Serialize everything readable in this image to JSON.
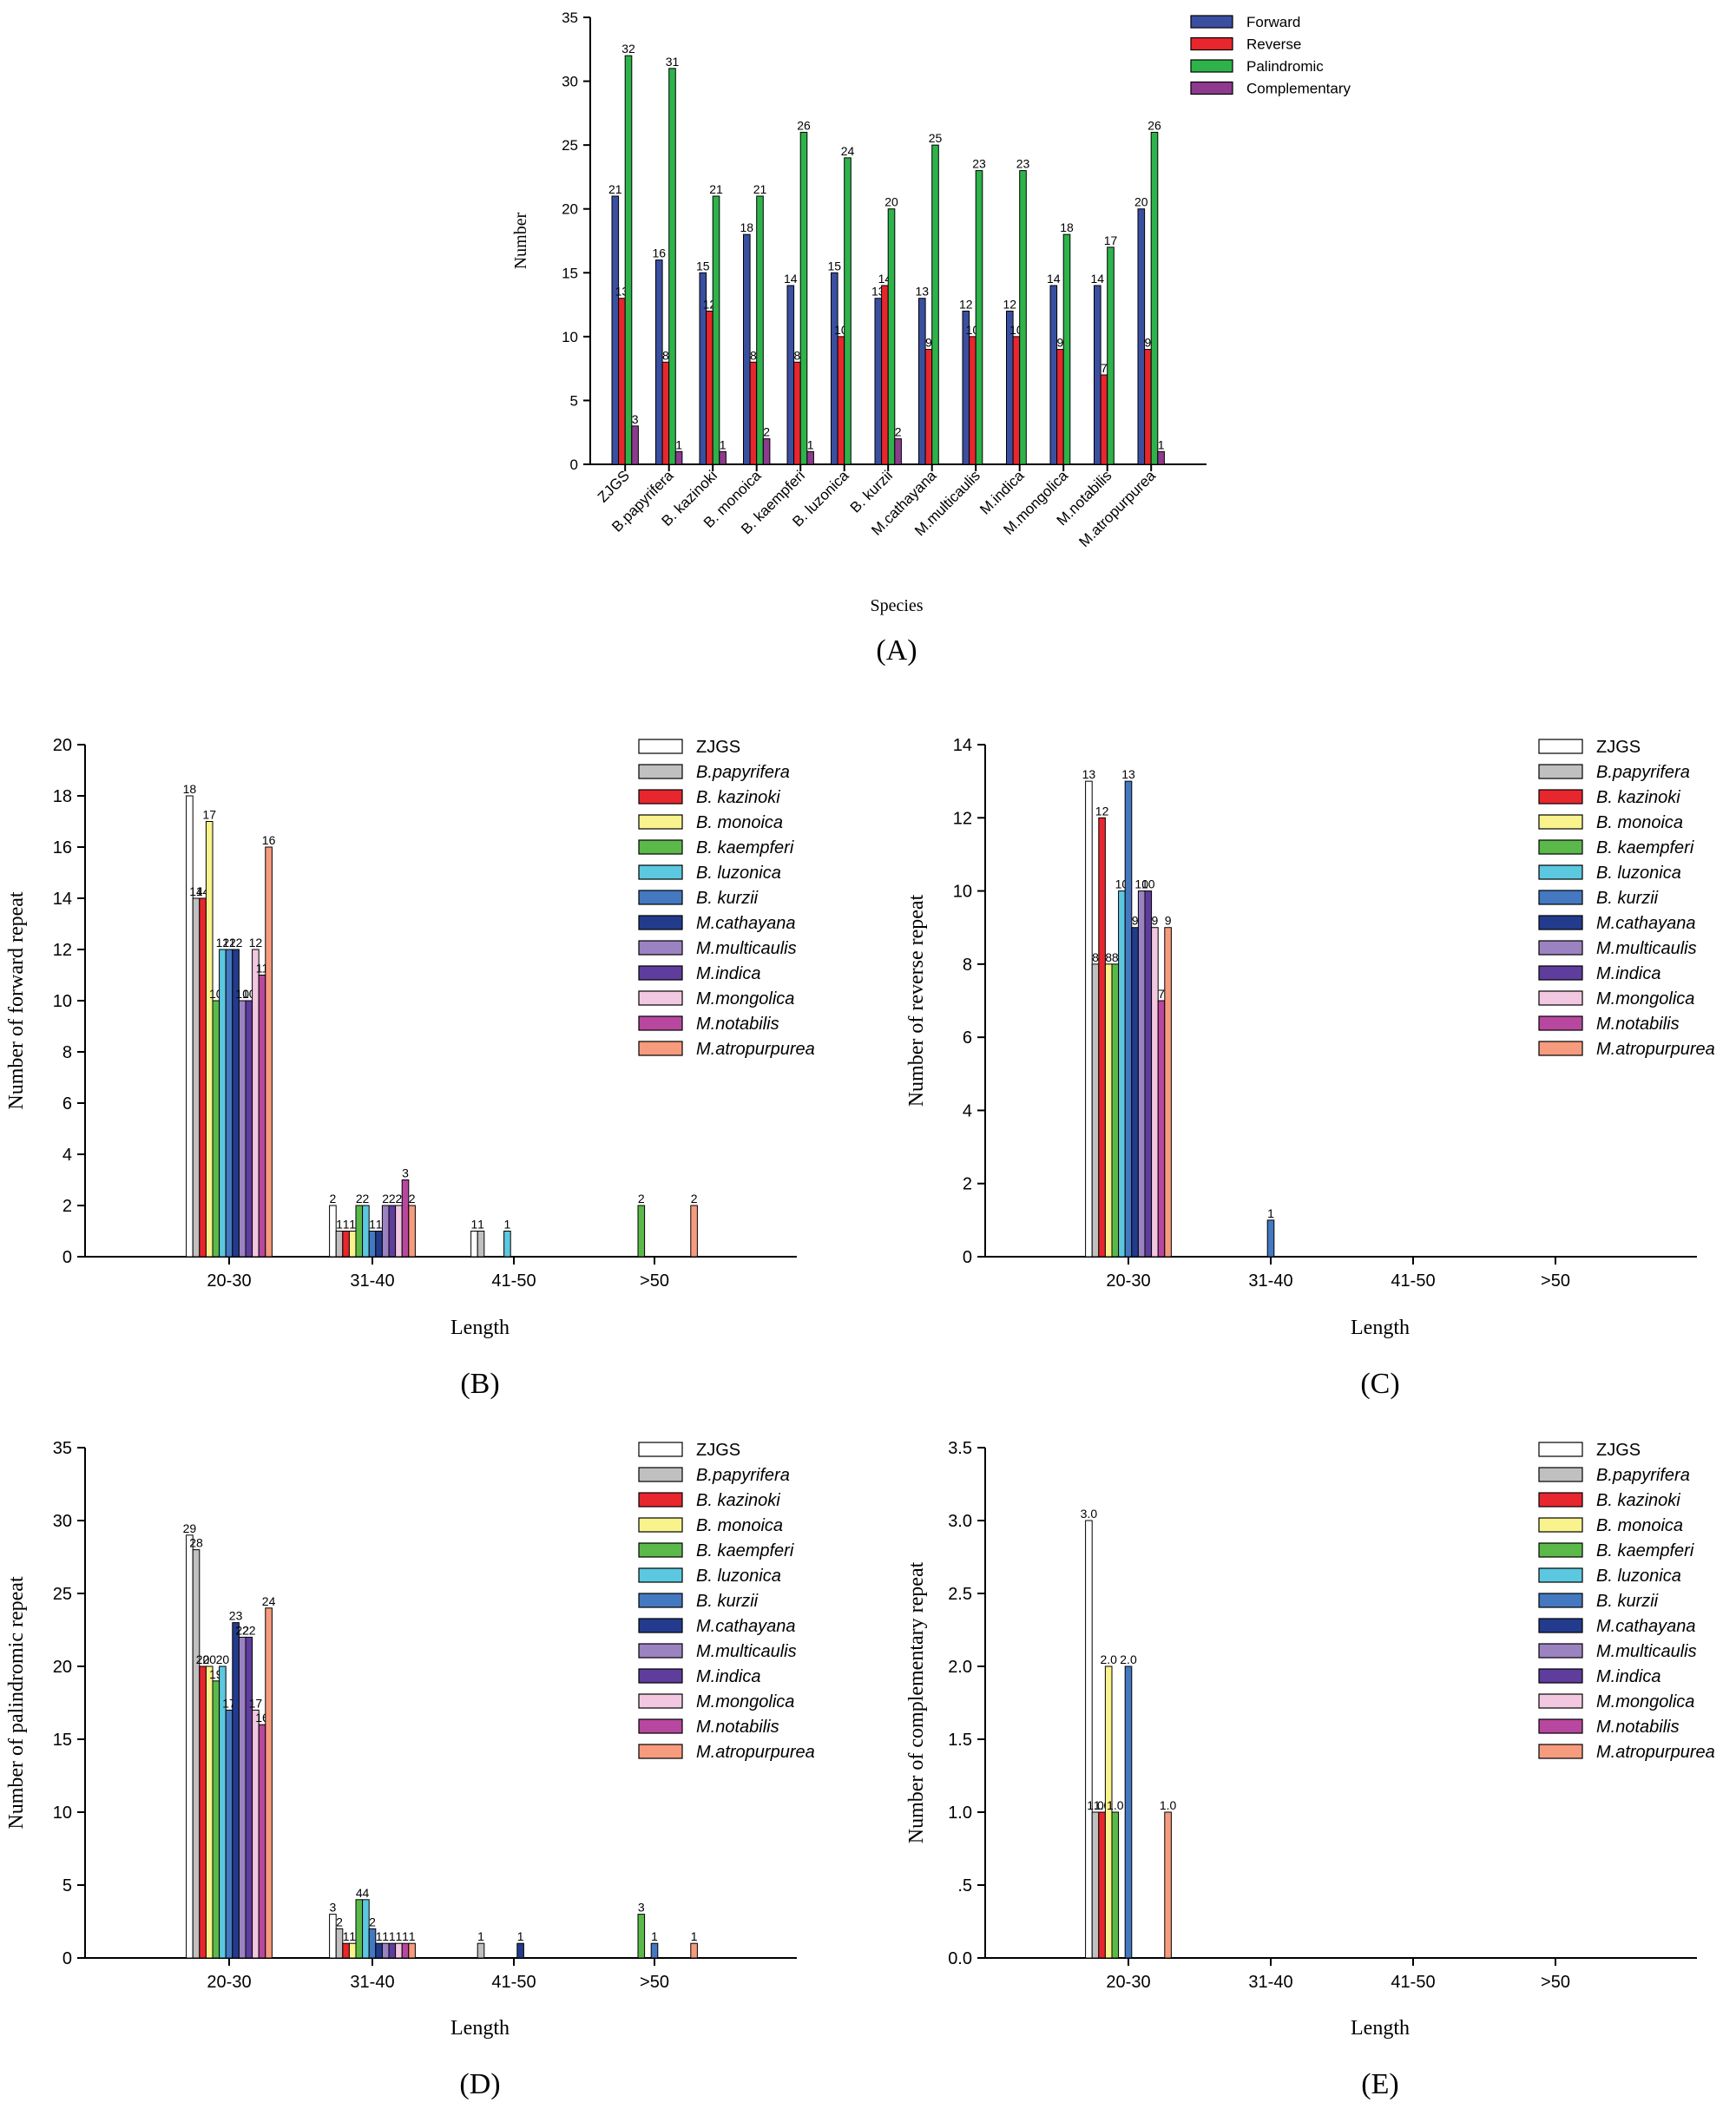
{
  "chart_data": [
    {
      "id": "A",
      "type": "bar",
      "panel_label": "(A)",
      "xlabel": "Species",
      "ylabel": "Number",
      "ylim": [
        0,
        35
      ],
      "yticks": [
        "0",
        "5",
        "10",
        "15",
        "20",
        "25",
        "30",
        "35"
      ],
      "categories": [
        "ZJGS",
        "B.papyrifera",
        "B. kazinoki",
        "B. monoica",
        "B. kaempferi",
        "B. luzonica",
        "B. kurzii",
        "M.cathayana",
        "M.multicaulis",
        "M.indica",
        "M.mongolica",
        "M.notabilis",
        "M.atropurpurea"
      ],
      "series": [
        {
          "name": "Forward",
          "color": "#3a4fa0",
          "values": [
            21,
            16,
            15,
            18,
            14,
            15,
            13,
            13,
            12,
            12,
            14,
            14,
            20
          ]
        },
        {
          "name": "Reverse",
          "color": "#e8262d",
          "values": [
            13,
            8,
            12,
            8,
            8,
            10,
            14,
            9,
            10,
            10,
            9,
            7,
            9
          ]
        },
        {
          "name": "Palindromic",
          "color": "#2db34a",
          "values": [
            32,
            31,
            21,
            21,
            26,
            24,
            20,
            25,
            23,
            23,
            18,
            17,
            26
          ]
        },
        {
          "name": "Complementary",
          "color": "#8e3a8e",
          "values": [
            3,
            1,
            1,
            2,
            1,
            0,
            2,
            0,
            0,
            0,
            0,
            0,
            1
          ]
        }
      ]
    },
    {
      "id": "B",
      "type": "bar",
      "panel_label": "(B)",
      "xlabel": "Length",
      "ylabel": "Number of forward repeat",
      "ylim": [
        0,
        20
      ],
      "yticks": [
        "0",
        "2",
        "4",
        "6",
        "8",
        "10",
        "12",
        "14",
        "16",
        "18",
        "20"
      ],
      "categories": [
        "20-30",
        "31-40",
        "41-50",
        ">50"
      ],
      "series": [
        {
          "name": "ZJGS",
          "values": [
            18,
            2,
            1,
            0
          ]
        },
        {
          "name": "B.papyrifera",
          "values": [
            14,
            1,
            1,
            0
          ]
        },
        {
          "name": "B. kazinoki",
          "values": [
            14,
            1,
            0,
            0
          ]
        },
        {
          "name": "B. monoica",
          "values": [
            17,
            1,
            0,
            0
          ]
        },
        {
          "name": "B. kaempferi",
          "values": [
            10,
            2,
            0,
            2
          ]
        },
        {
          "name": "B. luzonica",
          "values": [
            12,
            2,
            1,
            0
          ]
        },
        {
          "name": "B. kurzii",
          "values": [
            12,
            1,
            0,
            0
          ]
        },
        {
          "name": "M.cathayana",
          "values": [
            12,
            1,
            0,
            0
          ]
        },
        {
          "name": "M.multicaulis",
          "values": [
            10,
            2,
            0,
            0
          ]
        },
        {
          "name": "M.indica",
          "values": [
            10,
            2,
            0,
            0
          ]
        },
        {
          "name": "M.mongolica",
          "values": [
            12,
            2,
            0,
            0
          ]
        },
        {
          "name": "M.notabilis",
          "values": [
            11,
            3,
            0,
            0
          ]
        },
        {
          "name": "M.atropurpurea",
          "values": [
            16,
            2,
            0,
            2
          ]
        }
      ]
    },
    {
      "id": "C",
      "type": "bar",
      "panel_label": "(C)",
      "xlabel": "Length",
      "ylabel": "Number of reverse repeat",
      "ylim": [
        0,
        14
      ],
      "yticks": [
        "0",
        "2",
        "4",
        "6",
        "8",
        "10",
        "12",
        "14"
      ],
      "categories": [
        "20-30",
        "31-40",
        "41-50",
        ">50"
      ],
      "series": [
        {
          "name": "ZJGS",
          "values": [
            13,
            0,
            0,
            0
          ]
        },
        {
          "name": "B.papyrifera",
          "values": [
            8,
            0,
            0,
            0
          ]
        },
        {
          "name": "B. kazinoki",
          "values": [
            12,
            0,
            0,
            0
          ]
        },
        {
          "name": "B. monoica",
          "values": [
            8,
            0,
            0,
            0
          ]
        },
        {
          "name": "B. kaempferi",
          "values": [
            8,
            0,
            0,
            0
          ]
        },
        {
          "name": "B. luzonica",
          "values": [
            10,
            0,
            0,
            0
          ]
        },
        {
          "name": "B. kurzii",
          "values": [
            13,
            1,
            0,
            0
          ]
        },
        {
          "name": "M.cathayana",
          "values": [
            9,
            0,
            0,
            0
          ]
        },
        {
          "name": "M.multicaulis",
          "values": [
            10,
            0,
            0,
            0
          ]
        },
        {
          "name": "M.indica",
          "values": [
            10,
            0,
            0,
            0
          ]
        },
        {
          "name": "M.mongolica",
          "values": [
            9,
            0,
            0,
            0
          ]
        },
        {
          "name": "M.notabilis",
          "values": [
            7,
            0,
            0,
            0
          ]
        },
        {
          "name": "M.atropurpurea",
          "values": [
            9,
            0,
            0,
            0
          ]
        }
      ]
    },
    {
      "id": "D",
      "type": "bar",
      "panel_label": "(D)",
      "xlabel": "Length",
      "ylabel": "Number of palindromic repeat",
      "ylim": [
        0,
        35
      ],
      "yticks": [
        "0",
        "5",
        "10",
        "15",
        "20",
        "25",
        "30",
        "35"
      ],
      "categories": [
        "20-30",
        "31-40",
        "41-50",
        ">50"
      ],
      "series": [
        {
          "name": "ZJGS",
          "values": [
            29,
            3,
            0,
            0
          ]
        },
        {
          "name": "B.papyrifera",
          "values": [
            28,
            2,
            1,
            0
          ]
        },
        {
          "name": "B. kazinoki",
          "values": [
            20,
            1,
            0,
            0
          ]
        },
        {
          "name": "B. monoica",
          "values": [
            20,
            1,
            0,
            0
          ]
        },
        {
          "name": "B. kaempferi",
          "values": [
            19,
            4,
            0,
            3
          ]
        },
        {
          "name": "B. luzonica",
          "values": [
            20,
            4,
            0,
            0
          ]
        },
        {
          "name": "B. kurzii",
          "values": [
            17,
            2,
            0,
            1
          ]
        },
        {
          "name": "M.cathayana",
          "values": [
            23,
            1,
            1,
            0
          ]
        },
        {
          "name": "M.multicaulis",
          "values": [
            22,
            1,
            0,
            0
          ]
        },
        {
          "name": "M.indica",
          "values": [
            22,
            1,
            0,
            0
          ]
        },
        {
          "name": "M.mongolica",
          "values": [
            17,
            1,
            0,
            0
          ]
        },
        {
          "name": "M.notabilis",
          "values": [
            16,
            1,
            0,
            0
          ]
        },
        {
          "name": "M.atropurpurea",
          "values": [
            24,
            1,
            0,
            1
          ]
        }
      ]
    },
    {
      "id": "E",
      "type": "bar",
      "panel_label": "(E)",
      "xlabel": "Length",
      "ylabel": "Number of complementary repeat",
      "ylim": [
        0,
        3.5
      ],
      "yticks": [
        "0.0",
        ".5",
        "1.0",
        "1.5",
        "2.0",
        "2.5",
        "3.0",
        "3.5"
      ],
      "categories": [
        "20-30",
        "31-40",
        "41-50",
        ">50"
      ],
      "series": [
        {
          "name": "ZJGS",
          "values": [
            3,
            0,
            0,
            0
          ]
        },
        {
          "name": "B.papyrifera",
          "values": [
            1,
            0,
            0,
            0
          ]
        },
        {
          "name": "B. kazinoki",
          "values": [
            1,
            0,
            0,
            0
          ]
        },
        {
          "name": "B. monoica",
          "values": [
            2,
            0,
            0,
            0
          ]
        },
        {
          "name": "B. kaempferi",
          "values": [
            1,
            0,
            0,
            0
          ]
        },
        {
          "name": "B. luzonica",
          "values": [
            0,
            0,
            0,
            0
          ]
        },
        {
          "name": "B. kurzii",
          "values": [
            2,
            0,
            0,
            0
          ]
        },
        {
          "name": "M.cathayana",
          "values": [
            0,
            0,
            0,
            0
          ]
        },
        {
          "name": "M.multicaulis",
          "values": [
            0,
            0,
            0,
            0
          ]
        },
        {
          "name": "M.indica",
          "values": [
            0,
            0,
            0,
            0
          ]
        },
        {
          "name": "M.mongolica",
          "values": [
            0,
            0,
            0,
            0
          ]
        },
        {
          "name": "M.notabilis",
          "values": [
            0,
            0,
            0,
            0
          ]
        },
        {
          "name": "M.atropurpurea",
          "values": [
            1,
            0,
            0,
            0
          ]
        }
      ]
    }
  ],
  "species_colors": [
    "#ffffff",
    "#c0c0c0",
    "#e8262d",
    "#f8f38c",
    "#5bb94a",
    "#5bc8e0",
    "#4478c0",
    "#233b8c",
    "#9b82c0",
    "#5e3d9c",
    "#f2c8e0",
    "#b8479f",
    "#f69b7e"
  ],
  "species_italic": [
    false,
    true,
    true,
    true,
    true,
    true,
    true,
    true,
    true,
    true,
    true,
    true,
    true
  ]
}
